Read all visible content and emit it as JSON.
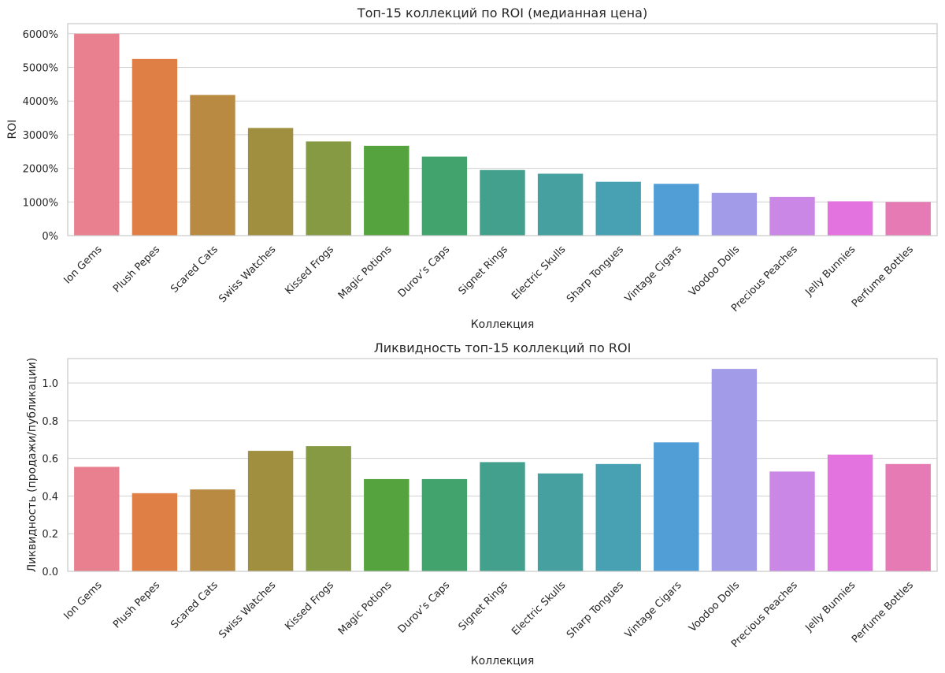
{
  "chart_data": [
    {
      "type": "bar",
      "title": "Топ-15 коллекций по ROI (медианная цена)",
      "xlabel": "Коллекция",
      "ylabel": "ROI",
      "ylim": [
        0,
        6300
      ],
      "yticks": [
        0,
        1000,
        2000,
        3000,
        4000,
        5000,
        6000
      ],
      "ytick_labels": [
        "0%",
        "1000%",
        "2000%",
        "3000%",
        "4000%",
        "5000%",
        "6000%"
      ],
      "grid": true,
      "categories": [
        "Ion Gems",
        "Plush Pepes",
        "Scared Cats",
        "Swiss Watches",
        "Kissed Frogs",
        "Magic Potions",
        "Durov’s Caps",
        "Signet Rings",
        "Electric Skulls",
        "Sharp Tongues",
        "Vintage Cigars",
        "Voodoo Dolls",
        "Precious Peaches",
        "Jelly Bunnies",
        "Perfume Bottles"
      ],
      "values": [
        6000,
        5250,
        4180,
        3200,
        2800,
        2670,
        2350,
        1950,
        1840,
        1600,
        1540,
        1270,
        1150,
        1020,
        1000
      ],
      "colors": [
        "#e8808f",
        "#df7f45",
        "#b98b42",
        "#a08f3f",
        "#859a42",
        "#55a33e",
        "#43a36c",
        "#43a08c",
        "#45a09f",
        "#47a1b3",
        "#519ed6",
        "#a29be8",
        "#cb87e6",
        "#e273df",
        "#e67ab5"
      ]
    },
    {
      "type": "bar",
      "title": "Ликвидность топ-15 коллекций по ROI",
      "xlabel": "Коллекция",
      "ylabel": "Ликвидность (продажи/публикации)",
      "ylim": [
        0,
        1.13
      ],
      "yticks": [
        0,
        0.2,
        0.4,
        0.6,
        0.8,
        1.0
      ],
      "ytick_labels": [
        "0.0",
        "0.2",
        "0.4",
        "0.6",
        "0.8",
        "1.0"
      ],
      "grid": true,
      "categories": [
        "Ion Gems",
        "Plush Pepes",
        "Scared Cats",
        "Swiss Watches",
        "Kissed Frogs",
        "Magic Potions",
        "Durov’s Caps",
        "Signet Rings",
        "Electric Skulls",
        "Sharp Tongues",
        "Vintage Cigars",
        "Voodoo Dolls",
        "Precious Peaches",
        "Jelly Bunnies",
        "Perfume Bottles"
      ],
      "values": [
        0.555,
        0.415,
        0.435,
        0.64,
        0.665,
        0.49,
        0.49,
        0.58,
        0.52,
        0.57,
        0.685,
        1.075,
        0.53,
        0.62,
        0.57
      ],
      "colors": [
        "#e8808f",
        "#df7f45",
        "#b98b42",
        "#a08f3f",
        "#859a42",
        "#55a33e",
        "#43a36c",
        "#43a08c",
        "#45a09f",
        "#47a1b3",
        "#519ed6",
        "#a29be8",
        "#cb87e6",
        "#e273df",
        "#e67ab5"
      ]
    }
  ]
}
